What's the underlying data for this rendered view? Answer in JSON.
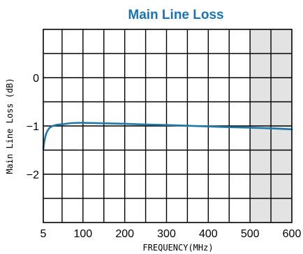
{
  "chart_data": {
    "type": "line",
    "title": "Main Line Loss",
    "xlabel": "FREQUENCY(MHz)",
    "ylabel": "Main Line Loss (dB)",
    "xlim": [
      5,
      600
    ],
    "ylim": [
      -3,
      1
    ],
    "x_ticks": [
      5,
      100,
      200,
      300,
      400,
      500,
      600
    ],
    "x_tick_labels": [
      "5",
      "100",
      "200",
      "300",
      "400",
      "500",
      "600"
    ],
    "y_ticks": [
      0,
      -1,
      -2
    ],
    "y_tick_labels": [
      "0",
      "−1",
      "−2"
    ],
    "grid": true,
    "x_grid_step": 50,
    "y_grid_step": 0.5,
    "shaded_region": {
      "x": [
        500,
        600
      ],
      "color": "#e3e3e3"
    },
    "series": [
      {
        "color": "#1f78a8",
        "x": [
          5,
          8,
          12,
          18,
          25,
          35,
          50,
          75,
          100,
          150,
          200,
          250,
          300,
          350,
          400,
          450,
          500,
          550,
          600
        ],
        "y": [
          -1.48,
          -1.3,
          -1.16,
          -1.06,
          -1.01,
          -0.98,
          -0.965,
          -0.94,
          -0.935,
          -0.945,
          -0.955,
          -0.97,
          -0.98,
          -0.995,
          -1.01,
          -1.025,
          -1.035,
          -1.05,
          -1.07
        ]
      }
    ]
  }
}
